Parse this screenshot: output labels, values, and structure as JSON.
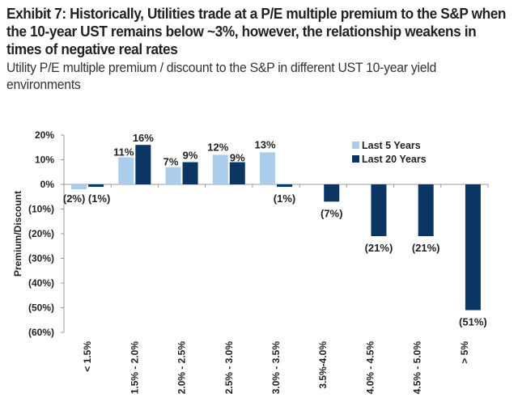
{
  "title": "Exhibit 7: Historically, Utilities trade at a P/E multiple premium to the S&P when the 10-year UST remains below ~3%, however, the relationship weakens in times of negative real rates",
  "subtitle": "Utility P/E multiple premium / discount to the S&P in different UST 10-year yield environments",
  "colors": {
    "last5": "#a9cdea",
    "last20": "#0b3562"
  },
  "chart_data": {
    "type": "bar",
    "title": "Utility P/E multiple premium / discount to the S&P in different UST 10-year yield environments",
    "xlabel": "",
    "ylabel": "Premium/Discount",
    "ylim": [
      -60,
      20
    ],
    "yticks": [
      20,
      10,
      0,
      -10,
      -20,
      -30,
      -40,
      -50,
      -60
    ],
    "ytick_labels": [
      "20%",
      "10%",
      "0%",
      "(10%)",
      "(20%)",
      "(30%)",
      "(40%)",
      "(50%)",
      "(60%)"
    ],
    "categories": [
      "< 1.5%",
      "1.5% - 2.0%",
      "2.0% - 2.5%",
      "2.5% - 3.0%",
      "3.0% - 3.5%",
      "3.5%-4.0%",
      "4.0% - 4.5%",
      "4.5% - 5.0%",
      "> 5%"
    ],
    "legend_position": "top-right",
    "grid": false,
    "series": [
      {
        "name": "Last 5 Years",
        "values": [
          -2,
          11,
          7,
          12,
          13,
          null,
          null,
          null,
          null
        ],
        "labels": [
          "(2%)",
          "11%",
          "7%",
          "12%",
          "13%",
          null,
          null,
          null,
          null
        ]
      },
      {
        "name": "Last 20 Years",
        "values": [
          -1,
          16,
          9,
          9,
          -1,
          -7,
          -21,
          -21,
          -51
        ],
        "labels": [
          "(1%)",
          "16%",
          "9%",
          "9%",
          "(1%)",
          "(7%)",
          "(21%)",
          "(21%)",
          "(51%)"
        ]
      }
    ]
  }
}
